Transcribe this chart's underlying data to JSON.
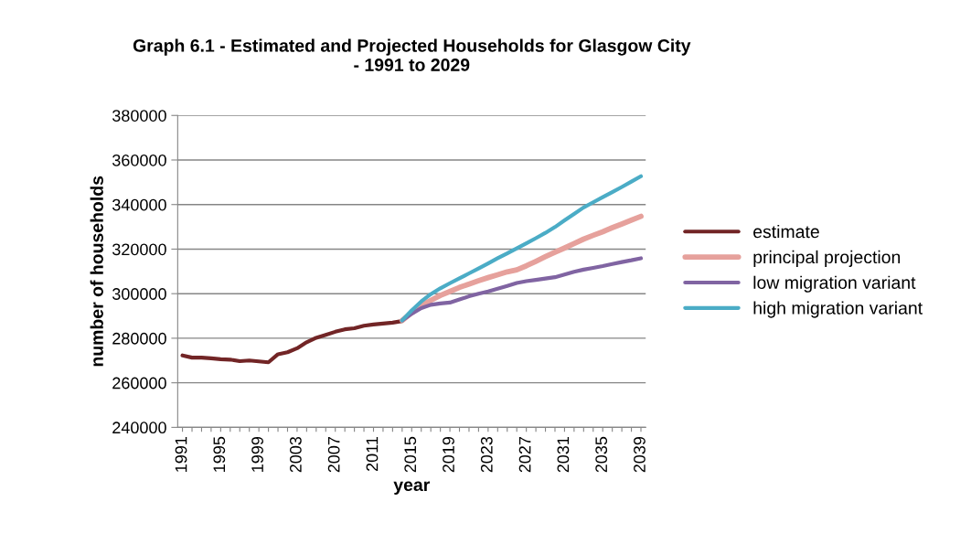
{
  "chart_data": {
    "type": "line",
    "title": "Graph 6.1 - Estimated and Projected Households for Glasgow City\n- 1991 to 2029",
    "xlabel": "year",
    "ylabel": "number of households",
    "categories": [
      "1991",
      null,
      null,
      null,
      "1995",
      null,
      null,
      null,
      "1999",
      null,
      null,
      null,
      "2003",
      null,
      null,
      null,
      "2007",
      null,
      null,
      null,
      "2011",
      null,
      null,
      null,
      "2015",
      null,
      null,
      null,
      "2019",
      null,
      null,
      null,
      "2023",
      null,
      null,
      null,
      "2027",
      null,
      null,
      null,
      "2031",
      null,
      null,
      null,
      "2035",
      null,
      null,
      null,
      "2039"
    ],
    "series": [
      {
        "name": "estimate",
        "color": "#722526",
        "values": [
          272300,
          271300,
          271300,
          271000,
          270600,
          270400,
          269700,
          270000,
          269600,
          269200,
          272800,
          273700,
          275500,
          278200,
          280200,
          281500,
          282900,
          284000,
          284500,
          285600,
          286200,
          286600,
          287000,
          287700,
          null,
          null,
          null,
          null,
          null,
          null,
          null,
          null,
          null,
          null,
          null,
          null,
          null,
          null,
          null,
          null,
          null,
          null,
          null,
          null,
          null,
          null,
          null,
          null,
          null
        ]
      },
      {
        "name": "principal projection",
        "color": "#e6a19c",
        "values": [
          null,
          null,
          null,
          null,
          null,
          null,
          null,
          null,
          null,
          null,
          null,
          null,
          null,
          null,
          null,
          null,
          null,
          null,
          null,
          null,
          null,
          null,
          null,
          288000,
          291500,
          294800,
          297000,
          299200,
          301000,
          302800,
          304300,
          305800,
          307200,
          308500,
          309800,
          310700,
          312500,
          314500,
          316600,
          318600,
          320500,
          322500,
          324500,
          326200,
          327800,
          329600,
          331300,
          333000,
          334700
        ]
      },
      {
        "name": "low migration variant",
        "color": "#8064a2",
        "values": [
          null,
          null,
          null,
          null,
          null,
          null,
          null,
          null,
          null,
          null,
          null,
          null,
          null,
          null,
          null,
          null,
          null,
          null,
          null,
          null,
          null,
          null,
          null,
          288000,
          291000,
          293500,
          295000,
          295600,
          296000,
          297400,
          298800,
          300000,
          301000,
          302200,
          303500,
          304800,
          305600,
          306200,
          306800,
          307400,
          308600,
          309800,
          310800,
          311600,
          312400,
          313300,
          314200,
          315000,
          315900
        ]
      },
      {
        "name": "high migration variant",
        "color": "#4bacc6",
        "values": [
          null,
          null,
          null,
          null,
          null,
          null,
          null,
          null,
          null,
          null,
          null,
          null,
          null,
          null,
          null,
          null,
          null,
          null,
          null,
          null,
          null,
          null,
          null,
          288000,
          292500,
          296500,
          299800,
          302400,
          304700,
          306900,
          309100,
          311300,
          313600,
          315900,
          318100,
          320300,
          322600,
          324900,
          327300,
          329900,
          332900,
          335800,
          338700,
          341000,
          343300,
          345600,
          347900,
          350300,
          352700
        ]
      }
    ],
    "ylim": [
      240000,
      380000
    ],
    "yticks": [
      240000,
      260000,
      280000,
      300000,
      320000,
      340000,
      360000,
      380000
    ],
    "grid": "y",
    "legend": "right",
    "marker": "none",
    "line_style": "solid"
  }
}
